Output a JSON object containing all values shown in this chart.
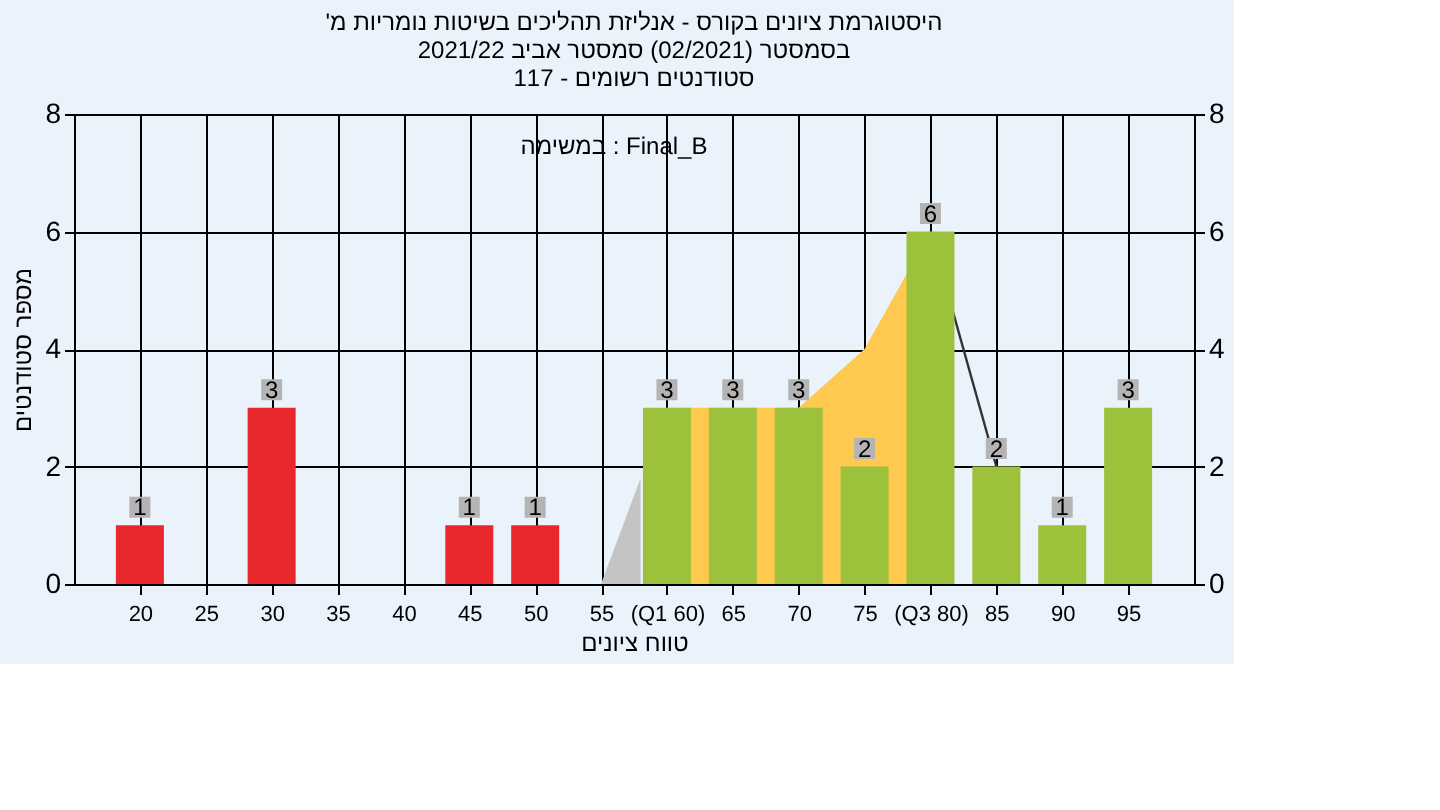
{
  "chart_data": {
    "type": "bar",
    "title": [
      "'היסטוגרמת ציונים בקורס - אנליזת תהליכים בשיטות נומריות מ",
      "בסמסטר  (02/2021)  סמסטר אביב 2021/22",
      "סטודנטים רשומים - 117"
    ],
    "xlabel": "טווח ציונים",
    "ylabel": "מספר סטודנטים",
    "x": [
      20,
      30,
      45,
      50,
      60,
      65,
      70,
      75,
      80,
      85,
      90,
      95
    ],
    "values": [
      1,
      3,
      1,
      1,
      3,
      3,
      3,
      2,
      6,
      2,
      1,
      3
    ],
    "colors": [
      "#e8282c",
      "#e8282c",
      "#e8282c",
      "#e8282c",
      "#9cc23c",
      "#9cc23c",
      "#9cc23c",
      "#9cc23c",
      "#9cc23c",
      "#9cc23c",
      "#9cc23c",
      "#9cc23c"
    ],
    "series": [
      {
        "type": "area",
        "color": "#ffc94f",
        "x": [
          60,
          70,
          75,
          80
        ],
        "values": [
          3,
          3,
          4,
          6
        ]
      },
      {
        "type": "area",
        "color": "#c4c4c4",
        "x": [
          55,
          58
        ],
        "values": [
          0,
          1.8
        ]
      },
      {
        "type": "line",
        "color": "#333333",
        "x": [
          80,
          85
        ],
        "values": [
          6,
          2
        ]
      }
    ],
    "value_labels": [
      "1",
      "3",
      "1",
      "1",
      "3",
      "3",
      "3",
      "2",
      "6",
      "2",
      "1",
      "3"
    ],
    "annotations": [
      "במשימה : Final_B"
    ],
    "xlim": [
      15,
      100
    ],
    "xticks": [
      20,
      25,
      30,
      35,
      40,
      45,
      50,
      55,
      {
        "value": 60,
        "label": "(Q1 60)"
      },
      65,
      70,
      75,
      {
        "value": 80,
        "label": "(Q3 80)"
      },
      85,
      90,
      95
    ],
    "ylim": [
      0,
      8
    ],
    "yticks": [
      0,
      2,
      4,
      6,
      8
    ],
    "y2lim": [
      0,
      8
    ],
    "y2ticks": [
      0,
      2,
      4,
      6,
      8
    ],
    "grid": true
  }
}
